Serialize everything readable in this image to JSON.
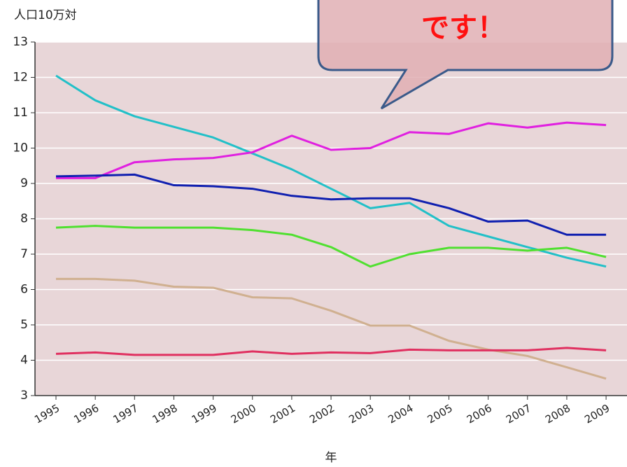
{
  "chart_data": {
    "type": "line",
    "y_label": "人口10万対",
    "x_label": "年",
    "annotations": [
      "です！"
    ],
    "categories": [
      "1995",
      "1996",
      "1997",
      "1998",
      "1999",
      "2000",
      "2001",
      "2002",
      "2003",
      "2004",
      "2005",
      "2006",
      "2007",
      "2008",
      "2009"
    ],
    "series": [
      {
        "color": "#22c0c8",
        "values": [
          12.05,
          11.35,
          10.9,
          10.6,
          10.3,
          9.85,
          9.4,
          8.85,
          8.3,
          8.45,
          7.8,
          7.5,
          7.2,
          6.9,
          6.65
        ]
      },
      {
        "color": "#e020e0",
        "values": [
          9.15,
          9.15,
          9.6,
          9.68,
          9.72,
          9.88,
          10.35,
          9.95,
          10.0,
          10.45,
          10.4,
          10.7,
          10.58,
          10.72,
          10.65
        ]
      },
      {
        "color": "#1020b0",
        "values": [
          9.2,
          9.22,
          9.25,
          8.95,
          8.92,
          8.85,
          8.65,
          8.55,
          8.58,
          8.58,
          8.3,
          7.92,
          7.95,
          7.55,
          7.55
        ]
      },
      {
        "color": "#50e030",
        "values": [
          7.75,
          7.8,
          7.75,
          7.75,
          7.75,
          7.68,
          7.55,
          7.2,
          6.65,
          7.0,
          7.18,
          7.18,
          7.1,
          7.18,
          6.92
        ]
      },
      {
        "color": "#d0b090",
        "values": [
          6.3,
          6.3,
          6.25,
          6.08,
          6.05,
          5.78,
          5.75,
          5.4,
          4.98,
          4.98,
          4.55,
          4.3,
          4.12,
          3.8,
          3.48
        ]
      },
      {
        "color": "#e03060",
        "values": [
          4.18,
          4.22,
          4.15,
          4.15,
          4.15,
          4.25,
          4.18,
          4.22,
          4.2,
          4.3,
          4.28,
          4.28,
          4.28,
          4.35,
          4.28
        ]
      }
    ],
    "ylim": [
      3,
      13
    ],
    "yticks": [
      3,
      4,
      5,
      6,
      7,
      8,
      9,
      10,
      11,
      12,
      13
    ],
    "grid": true
  }
}
